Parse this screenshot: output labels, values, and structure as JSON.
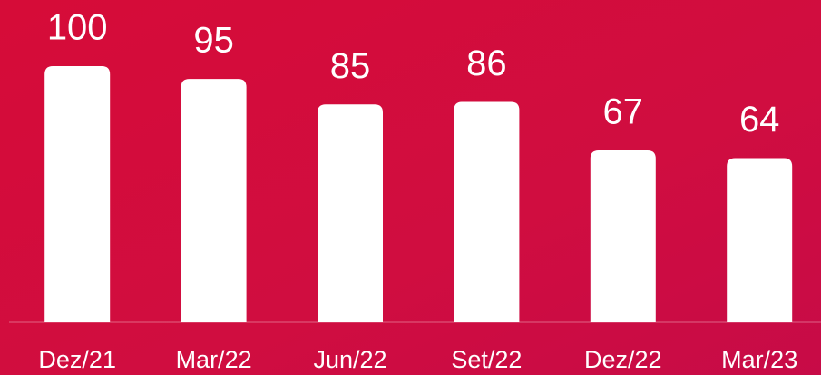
{
  "chart_data": {
    "type": "bar",
    "categories": [
      "Dez/21",
      "Mar/22",
      "Jun/22",
      "Set/22",
      "Dez/22",
      "Mar/23"
    ],
    "values": [
      100,
      95,
      85,
      86,
      67,
      64
    ],
    "color": "#ffffff",
    "ylim": [
      0,
      100
    ]
  }
}
